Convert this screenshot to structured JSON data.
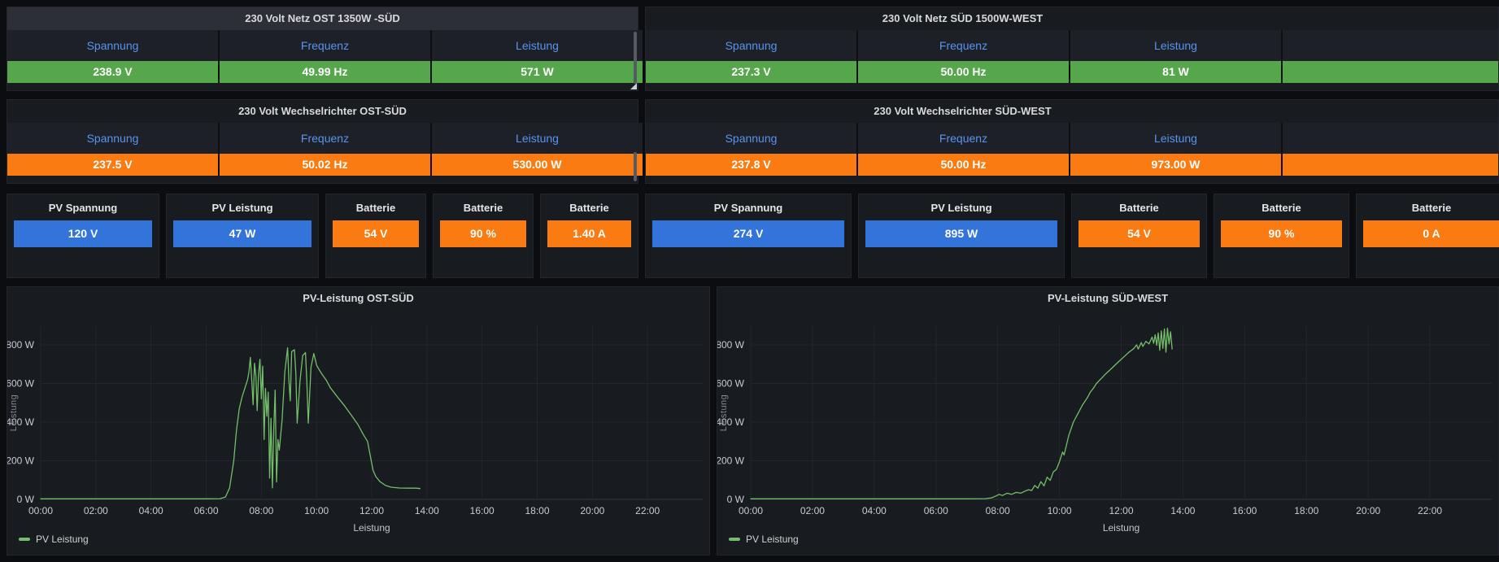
{
  "colors": {
    "green": "#56a64b",
    "orange": "#fa7b11",
    "blue": "#3274d9",
    "header_link": "#5794f2",
    "line_green": "#73bf69",
    "panel_bg": "#181b20",
    "page_bg": "#0c0d10"
  },
  "panels": {
    "tables": [
      {
        "title": "230 Volt Netz OST 1350W -SÜD",
        "value_color": "green",
        "columns": [
          {
            "label": "Spannung",
            "value": "238.9 V"
          },
          {
            "label": "Frequenz",
            "value": "49.99 Hz"
          },
          {
            "label": "Leistung",
            "value": "571 W"
          }
        ]
      },
      {
        "title": "230 Volt Netz SÜD 1500W-WEST",
        "value_color": "green",
        "columns": [
          {
            "label": "Spannung",
            "value": "237.3 V"
          },
          {
            "label": "Frequenz",
            "value": "50.00 Hz"
          },
          {
            "label": "Leistung",
            "value": "81 W"
          }
        ]
      },
      {
        "title": "230 Volt Wechselrichter OST-SÜD",
        "value_color": "orange",
        "columns": [
          {
            "label": "Spannung",
            "value": "237.5 V"
          },
          {
            "label": "Frequenz",
            "value": "50.02 Hz"
          },
          {
            "label": "Leistung",
            "value": "530.00 W"
          }
        ]
      },
      {
        "title": "230 Volt Wechselrichter SÜD-WEST",
        "value_color": "orange",
        "columns": [
          {
            "label": "Spannung",
            "value": "237.8 V"
          },
          {
            "label": "Frequenz",
            "value": "50.00 Hz"
          },
          {
            "label": "Leistung",
            "value": "973.00 W"
          }
        ]
      }
    ],
    "stats": [
      {
        "title": "PV Spannung",
        "value": "120 V",
        "color": "blue"
      },
      {
        "title": "PV Leistung",
        "value": "47 W",
        "color": "blue"
      },
      {
        "title": "Batterie",
        "value": "54 V",
        "color": "orange"
      },
      {
        "title": "Batterie",
        "value": "90 %",
        "color": "orange"
      },
      {
        "title": "Batterie",
        "value": "1.40 A",
        "color": "orange"
      },
      {
        "title": "PV Spannung",
        "value": "274 V",
        "color": "blue"
      },
      {
        "title": "PV Leistung",
        "value": "895 W",
        "color": "blue"
      },
      {
        "title": "Batterie",
        "value": "54 V",
        "color": "orange"
      },
      {
        "title": "Batterie",
        "value": "90 %",
        "color": "orange"
      },
      {
        "title": "Batterie",
        "value": "0 A",
        "color": "orange"
      }
    ]
  },
  "chart_data": [
    {
      "type": "line",
      "title": "PV-Leistung OST-SÜD",
      "xlabel": "Leistung",
      "ylabel": "Leistung",
      "legend_position": "bottom-left",
      "grid": true,
      "ylim": [
        0,
        897
      ],
      "yticks": [
        {
          "v": 0,
          "label": "0 W"
        },
        {
          "v": 200,
          "label": "200 W"
        },
        {
          "v": 400,
          "label": "400 W"
        },
        {
          "v": 600,
          "label": "600 W"
        },
        {
          "v": 800,
          "label": "800 W"
        }
      ],
      "xlim_hours": [
        0,
        24
      ],
      "xticks": [
        {
          "h": 0,
          "label": "00:00"
        },
        {
          "h": 2,
          "label": "02:00"
        },
        {
          "h": 4,
          "label": "04:00"
        },
        {
          "h": 6,
          "label": "06:00"
        },
        {
          "h": 8,
          "label": "08:00"
        },
        {
          "h": 10,
          "label": "10:00"
        },
        {
          "h": 12,
          "label": "12:00"
        },
        {
          "h": 14,
          "label": "14:00"
        },
        {
          "h": 16,
          "label": "16:00"
        },
        {
          "h": 18,
          "label": "18:00"
        },
        {
          "h": 20,
          "label": "20:00"
        },
        {
          "h": 22,
          "label": "22:00"
        }
      ],
      "series": [
        {
          "name": "PV Leistung",
          "color": "#73bf69",
          "points_hour_watt": [
            [
              0,
              3
            ],
            [
              1,
              3
            ],
            [
              2,
              3
            ],
            [
              3,
              3
            ],
            [
              4,
              3
            ],
            [
              5,
              3
            ],
            [
              6,
              3
            ],
            [
              6.5,
              4
            ],
            [
              6.7,
              12
            ],
            [
              6.85,
              60
            ],
            [
              7.0,
              200
            ],
            [
              7.1,
              360
            ],
            [
              7.2,
              470
            ],
            [
              7.3,
              530
            ],
            [
              7.4,
              575
            ],
            [
              7.5,
              620
            ],
            [
              7.55,
              660
            ],
            [
              7.6,
              735
            ],
            [
              7.65,
              620
            ],
            [
              7.7,
              490
            ],
            [
              7.75,
              705
            ],
            [
              7.8,
              640
            ],
            [
              7.85,
              460
            ],
            [
              7.9,
              650
            ],
            [
              7.95,
              725
            ],
            [
              8.0,
              520
            ],
            [
              8.05,
              690
            ],
            [
              8.1,
              310
            ],
            [
              8.15,
              575
            ],
            [
              8.2,
              430
            ],
            [
              8.25,
              555
            ],
            [
              8.3,
              110
            ],
            [
              8.35,
              420
            ],
            [
              8.4,
              60
            ],
            [
              8.45,
              360
            ],
            [
              8.5,
              565
            ],
            [
              8.55,
              90
            ],
            [
              8.6,
              310
            ],
            [
              8.65,
              255
            ],
            [
              8.75,
              410
            ],
            [
              8.85,
              660
            ],
            [
              8.95,
              785
            ],
            [
              9.0,
              610
            ],
            [
              9.05,
              510
            ],
            [
              9.1,
              765
            ],
            [
              9.2,
              775
            ],
            [
              9.25,
              655
            ],
            [
              9.3,
              395
            ],
            [
              9.4,
              610
            ],
            [
              9.5,
              745
            ],
            [
              9.6,
              760
            ],
            [
              9.65,
              605
            ],
            [
              9.7,
              395
            ],
            [
              9.8,
              685
            ],
            [
              9.9,
              755
            ],
            [
              10.0,
              695
            ],
            [
              10.1,
              670
            ],
            [
              10.2,
              648
            ],
            [
              10.35,
              618
            ],
            [
              10.5,
              578
            ],
            [
              10.75,
              532
            ],
            [
              11.0,
              487
            ],
            [
              11.25,
              438
            ],
            [
              11.5,
              388
            ],
            [
              11.7,
              335
            ],
            [
              11.85,
              300
            ],
            [
              11.95,
              225
            ],
            [
              12.05,
              150
            ],
            [
              12.15,
              118
            ],
            [
              12.3,
              92
            ],
            [
              12.5,
              72
            ],
            [
              12.7,
              63
            ],
            [
              13.0,
              59
            ],
            [
              13.3,
              58
            ],
            [
              13.6,
              58
            ],
            [
              13.75,
              56
            ]
          ]
        }
      ]
    },
    {
      "type": "line",
      "title": "PV-Leistung SÜD-WEST",
      "xlabel": "Leistung",
      "ylabel": "Leistung",
      "legend_position": "bottom-left",
      "grid": true,
      "ylim": [
        0,
        897
      ],
      "yticks": [
        {
          "v": 0,
          "label": "0 W"
        },
        {
          "v": 200,
          "label": "200 W"
        },
        {
          "v": 400,
          "label": "400 W"
        },
        {
          "v": 600,
          "label": "600 W"
        },
        {
          "v": 800,
          "label": "800 W"
        }
      ],
      "xlim_hours": [
        0,
        24
      ],
      "xticks": [
        {
          "h": 0,
          "label": "00:00"
        },
        {
          "h": 2,
          "label": "02:00"
        },
        {
          "h": 4,
          "label": "04:00"
        },
        {
          "h": 6,
          "label": "06:00"
        },
        {
          "h": 8,
          "label": "08:00"
        },
        {
          "h": 10,
          "label": "10:00"
        },
        {
          "h": 12,
          "label": "12:00"
        },
        {
          "h": 14,
          "label": "14:00"
        },
        {
          "h": 16,
          "label": "16:00"
        },
        {
          "h": 18,
          "label": "18:00"
        },
        {
          "h": 20,
          "label": "20:00"
        },
        {
          "h": 22,
          "label": "22:00"
        }
      ],
      "series": [
        {
          "name": "PV Leistung",
          "color": "#73bf69",
          "points_hour_watt": [
            [
              0,
              3
            ],
            [
              1,
              3
            ],
            [
              2,
              3
            ],
            [
              3,
              3
            ],
            [
              4,
              3
            ],
            [
              5,
              3
            ],
            [
              6,
              3
            ],
            [
              7,
              3
            ],
            [
              7.6,
              4
            ],
            [
              7.8,
              8
            ],
            [
              7.95,
              18
            ],
            [
              8.05,
              26
            ],
            [
              8.15,
              20
            ],
            [
              8.3,
              32
            ],
            [
              8.45,
              26
            ],
            [
              8.6,
              36
            ],
            [
              8.75,
              32
            ],
            [
              8.9,
              44
            ],
            [
              9.0,
              50
            ],
            [
              9.1,
              46
            ],
            [
              9.2,
              72
            ],
            [
              9.3,
              58
            ],
            [
              9.4,
              92
            ],
            [
              9.5,
              70
            ],
            [
              9.6,
              115
            ],
            [
              9.7,
              98
            ],
            [
              9.8,
              142
            ],
            [
              9.9,
              155
            ],
            [
              10.0,
              195
            ],
            [
              10.1,
              245
            ],
            [
              10.15,
              230
            ],
            [
              10.3,
              330
            ],
            [
              10.45,
              400
            ],
            [
              10.6,
              445
            ],
            [
              10.75,
              490
            ],
            [
              10.9,
              525
            ],
            [
              11.0,
              555
            ],
            [
              11.1,
              575
            ],
            [
              11.2,
              600
            ],
            [
              11.35,
              625
            ],
            [
              11.5,
              650
            ],
            [
              11.65,
              672
            ],
            [
              11.8,
              695
            ],
            [
              11.95,
              718
            ],
            [
              12.1,
              740
            ],
            [
              12.25,
              762
            ],
            [
              12.4,
              780
            ],
            [
              12.5,
              800
            ],
            [
              12.55,
              778
            ],
            [
              12.65,
              812
            ],
            [
              12.7,
              792
            ],
            [
              12.8,
              818
            ],
            [
              12.9,
              805
            ],
            [
              13.0,
              840
            ],
            [
              13.05,
              808
            ],
            [
              13.1,
              852
            ],
            [
              13.15,
              798
            ],
            [
              13.2,
              862
            ],
            [
              13.25,
              772
            ],
            [
              13.3,
              872
            ],
            [
              13.35,
              782
            ],
            [
              13.4,
              882
            ],
            [
              13.45,
              762
            ],
            [
              13.5,
              886
            ],
            [
              13.55,
              805
            ],
            [
              13.6,
              868
            ],
            [
              13.65,
              778
            ]
          ]
        }
      ]
    }
  ]
}
